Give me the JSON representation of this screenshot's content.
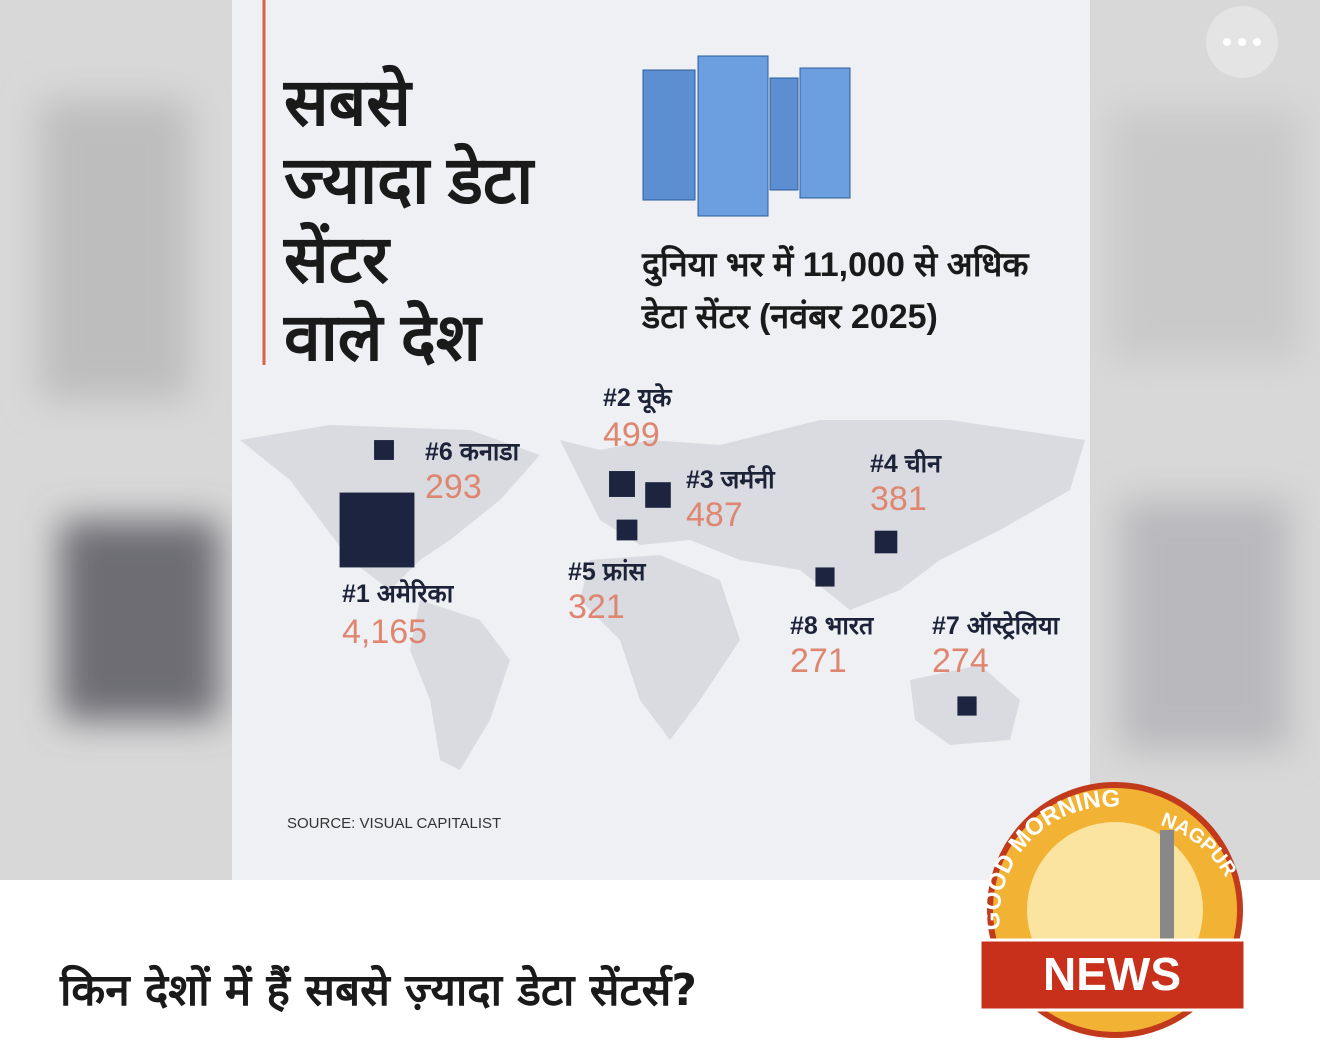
{
  "infographic": {
    "title_lines": [
      "सबसे",
      "ज्यादा डेटा",
      "सेंटर",
      "वाले देश"
    ],
    "subtitle_lines": [
      "दुनिया भर में 11,000 से अधिक",
      "डेटा सेंटर (नवंबर 2025)"
    ],
    "countries": [
      {
        "label": "#1 अमेरिका",
        "value": 4165,
        "value_label": "4,165"
      },
      {
        "label": "#2 यूके",
        "value": 499,
        "value_label": "499"
      },
      {
        "label": "#3 जर्मनी",
        "value": 487,
        "value_label": "487"
      },
      {
        "label": "#4 चीन",
        "value": 381,
        "value_label": "381"
      },
      {
        "label": "#5 फ्रांस",
        "value": 321,
        "value_label": "321"
      },
      {
        "label": "#6 कनाडा",
        "value": 293,
        "value_label": "293"
      },
      {
        "label": "#7 ऑस्ट्रेलिया",
        "value": 274,
        "value_label": "274"
      },
      {
        "label": "#8 भारत",
        "value": 271,
        "value_label": "271"
      }
    ],
    "source": "SOURCE: VISUAL CAPITALIST"
  },
  "post": {
    "caption": "किन देशों में हैं सबसे ज़्यादा डेटा सेंटर्स?"
  },
  "logo": {
    "top": "GOOD MORNING",
    "right": "NAGPUR",
    "badge": "NEWS"
  }
}
